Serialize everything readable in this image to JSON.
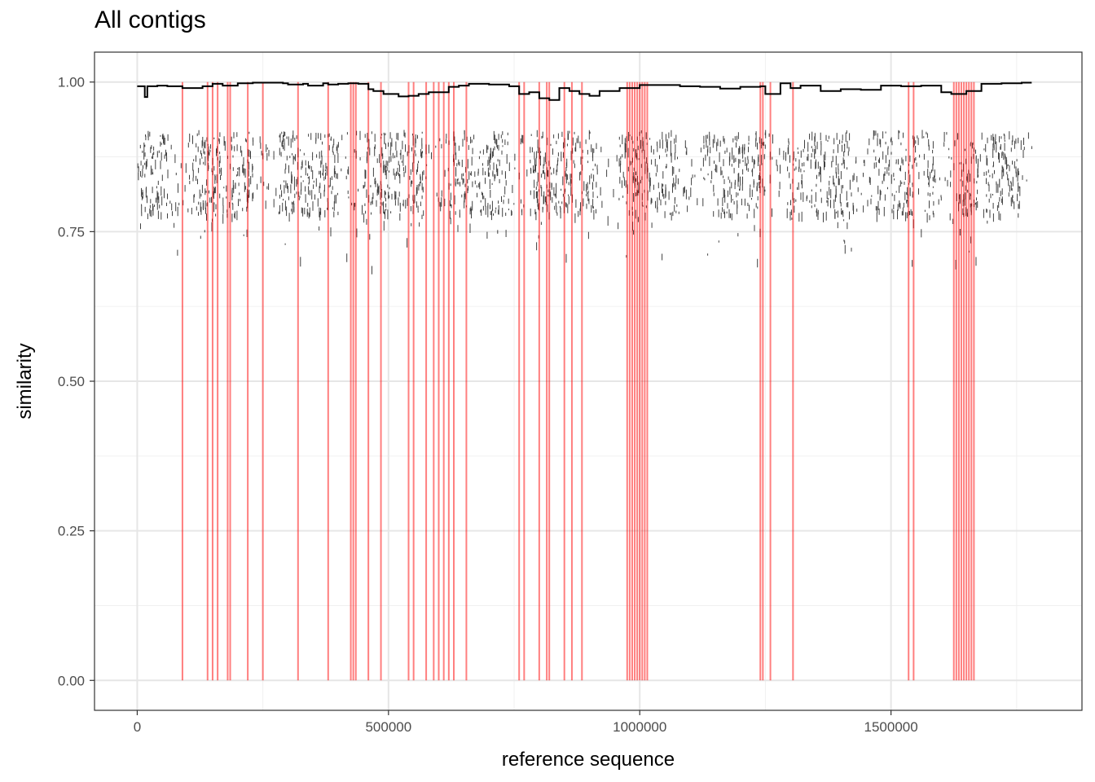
{
  "chart_data": {
    "type": "line",
    "title": "All contigs",
    "xlabel": "reference sequence",
    "ylabel": "similarity",
    "xlim": [
      -85000,
      1880000
    ],
    "ylim": [
      -0.05,
      1.05
    ],
    "x_ticks": [
      0,
      500000,
      1000000,
      1500000
    ],
    "x_tick_labels": [
      "0",
      "500000",
      "1000000",
      "1500000"
    ],
    "y_ticks": [
      0.0,
      0.25,
      0.5,
      0.75,
      1.0
    ],
    "y_tick_labels": [
      "0.00",
      "0.25",
      "0.50",
      "0.75",
      "1.00"
    ],
    "grid": true,
    "series": [
      {
        "color": "#000000",
        "x": [
          0,
          15000,
          20000,
          40000,
          60000,
          90000,
          130000,
          150000,
          170000,
          200000,
          230000,
          290000,
          300000,
          330000,
          340000,
          370000,
          380000,
          400000,
          420000,
          440000,
          460000,
          470000,
          490000,
          520000,
          540000,
          560000,
          580000,
          620000,
          640000,
          660000,
          700000,
          740000,
          760000,
          780000,
          800000,
          820000,
          840000,
          860000,
          880000,
          900000,
          920000,
          960000,
          1000000,
          1040000,
          1080000,
          1120000,
          1160000,
          1200000,
          1240000,
          1250000,
          1280000,
          1300000,
          1320000,
          1360000,
          1400000,
          1440000,
          1480000,
          1520000,
          1560000,
          1600000,
          1620000,
          1650000,
          1680000,
          1720000,
          1760000,
          1780000
        ],
        "y": [
          0.993,
          0.975,
          0.993,
          0.994,
          0.993,
          0.99,
          0.993,
          0.997,
          0.994,
          0.998,
          0.999,
          0.998,
          0.996,
          0.997,
          0.994,
          0.998,
          0.996,
          0.997,
          0.998,
          0.997,
          0.988,
          0.985,
          0.98,
          0.976,
          0.977,
          0.98,
          0.983,
          0.992,
          0.994,
          0.997,
          0.996,
          0.993,
          0.98,
          0.983,
          0.973,
          0.97,
          0.99,
          0.985,
          0.98,
          0.977,
          0.985,
          0.99,
          0.995,
          0.995,
          0.993,
          0.992,
          0.989,
          0.992,
          0.993,
          0.98,
          0.998,
          0.99,
          0.994,
          0.985,
          0.988,
          0.987,
          0.994,
          0.993,
          0.994,
          0.983,
          0.98,
          0.985,
          0.997,
          0.998,
          0.999,
          0.999
        ]
      }
    ],
    "breakpoints_color": "#ff0000",
    "breakpoints_x": [
      90000,
      140000,
      150000,
      160000,
      180000,
      185000,
      220000,
      250000,
      320000,
      380000,
      425000,
      430000,
      435000,
      460000,
      485000,
      540000,
      550000,
      575000,
      590000,
      600000,
      610000,
      620000,
      630000,
      655000,
      760000,
      770000,
      800000,
      815000,
      820000,
      850000,
      865000,
      885000,
      975000,
      980000,
      985000,
      990000,
      995000,
      1000000,
      1005000,
      1010000,
      1015000,
      1240000,
      1245000,
      1260000,
      1305000,
      1535000,
      1545000,
      1625000,
      1630000,
      1635000,
      1640000,
      1645000,
      1650000,
      1655000,
      1660000,
      1665000
    ]
  }
}
